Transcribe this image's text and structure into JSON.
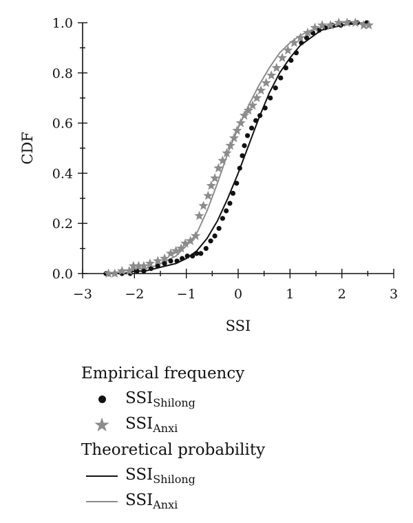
{
  "colors": {
    "shilong": "#111111",
    "anxi": "#8c8c8c",
    "axis": "#111111"
  },
  "chart_data": {
    "type": "line",
    "xlabel": "SSI",
    "ylabel": "CDF",
    "xlim": [
      -3,
      3
    ],
    "ylim": [
      0,
      1
    ],
    "xticks": [
      "−3",
      "−2",
      "−1",
      "0",
      "1",
      "2",
      "3"
    ],
    "yticks": [
      "0.0",
      "0.2",
      "0.4",
      "0.6",
      "0.8",
      "1.0"
    ],
    "grid": false,
    "legend_position": "bottom",
    "series": [
      {
        "name": "SSIShilong",
        "kind": "empirical",
        "marker": "dot",
        "color": "#111111",
        "points": [
          [
            -2.55,
            0.0
          ],
          [
            -2.38,
            0.0
          ],
          [
            -2.24,
            0.0
          ],
          [
            -2.08,
            0.0
          ],
          [
            -1.95,
            0.01
          ],
          [
            -1.82,
            0.01
          ],
          [
            -1.68,
            0.02
          ],
          [
            -1.55,
            0.03
          ],
          [
            -1.42,
            0.04
          ],
          [
            -1.3,
            0.05
          ],
          [
            -1.18,
            0.05
          ],
          [
            -1.08,
            0.06
          ],
          [
            -0.98,
            0.07
          ],
          [
            -0.88,
            0.07
          ],
          [
            -0.8,
            0.08
          ],
          [
            -0.72,
            0.08
          ],
          [
            -0.62,
            0.1
          ],
          [
            -0.53,
            0.13
          ],
          [
            -0.45,
            0.15
          ],
          [
            -0.37,
            0.18
          ],
          [
            -0.3,
            0.22
          ],
          [
            -0.23,
            0.25
          ],
          [
            -0.16,
            0.28
          ],
          [
            -0.1,
            0.32
          ],
          [
            -0.03,
            0.36
          ],
          [
            0.03,
            0.42
          ],
          [
            0.08,
            0.47
          ],
          [
            0.12,
            0.51
          ],
          [
            0.18,
            0.55
          ],
          [
            0.26,
            0.58
          ],
          [
            0.34,
            0.61
          ],
          [
            0.42,
            0.63
          ],
          [
            0.52,
            0.66
          ],
          [
            0.62,
            0.7
          ],
          [
            0.72,
            0.74
          ],
          [
            0.82,
            0.78
          ],
          [
            0.92,
            0.82
          ],
          [
            1.02,
            0.85
          ],
          [
            1.12,
            0.88
          ],
          [
            1.22,
            0.92
          ],
          [
            1.32,
            0.94
          ],
          [
            1.44,
            0.96
          ],
          [
            1.56,
            0.97
          ],
          [
            1.68,
            0.98
          ],
          [
            1.82,
            0.99
          ],
          [
            1.98,
            0.99
          ],
          [
            2.14,
            1.0
          ],
          [
            2.3,
            1.0
          ],
          [
            2.48,
            1.0
          ]
        ]
      },
      {
        "name": "SSIAnxi",
        "kind": "empirical",
        "marker": "star",
        "color": "#8c8c8c",
        "points": [
          [
            -2.5,
            0.0
          ],
          [
            -2.38,
            0.0
          ],
          [
            -2.24,
            0.01
          ],
          [
            -2.1,
            0.01
          ],
          [
            -2.02,
            0.03
          ],
          [
            -1.92,
            0.03
          ],
          [
            -1.82,
            0.03
          ],
          [
            -1.7,
            0.04
          ],
          [
            -1.55,
            0.05
          ],
          [
            -1.42,
            0.06
          ],
          [
            -1.3,
            0.08
          ],
          [
            -1.2,
            0.09
          ],
          [
            -1.1,
            0.1
          ],
          [
            -1.02,
            0.12
          ],
          [
            -0.92,
            0.13
          ],
          [
            -0.82,
            0.15
          ],
          [
            -0.75,
            0.23
          ],
          [
            -0.67,
            0.27
          ],
          [
            -0.58,
            0.31
          ],
          [
            -0.52,
            0.35
          ],
          [
            -0.45,
            0.38
          ],
          [
            -0.38,
            0.42
          ],
          [
            -0.3,
            0.45
          ],
          [
            -0.22,
            0.48
          ],
          [
            -0.15,
            0.51
          ],
          [
            -0.08,
            0.54
          ],
          [
            -0.02,
            0.57
          ],
          [
            0.05,
            0.6
          ],
          [
            0.12,
            0.63
          ],
          [
            0.2,
            0.65
          ],
          [
            0.28,
            0.67
          ],
          [
            0.36,
            0.7
          ],
          [
            0.44,
            0.73
          ],
          [
            0.54,
            0.76
          ],
          [
            0.64,
            0.79
          ],
          [
            0.74,
            0.82
          ],
          [
            0.85,
            0.86
          ],
          [
            0.96,
            0.89
          ],
          [
            1.08,
            0.92
          ],
          [
            1.2,
            0.94
          ],
          [
            1.34,
            0.96
          ],
          [
            1.48,
            0.98
          ],
          [
            1.62,
            0.99
          ],
          [
            1.78,
            0.99
          ],
          [
            1.94,
            1.0
          ],
          [
            2.1,
            1.0
          ],
          [
            2.26,
            1.0
          ],
          [
            2.42,
            0.99
          ],
          [
            2.52,
            0.99
          ]
        ]
      },
      {
        "name": "SSIShilong",
        "kind": "theoretical",
        "marker": "line",
        "color": "#111111",
        "points": [
          [
            -2.5,
            0.0
          ],
          [
            -2.2,
            0.0
          ],
          [
            -2.0,
            0.01
          ],
          [
            -1.8,
            0.01
          ],
          [
            -1.6,
            0.02
          ],
          [
            -1.4,
            0.03
          ],
          [
            -1.2,
            0.04
          ],
          [
            -1.0,
            0.06
          ],
          [
            -0.8,
            0.09
          ],
          [
            -0.6,
            0.14
          ],
          [
            -0.4,
            0.21
          ],
          [
            -0.2,
            0.3
          ],
          [
            0.0,
            0.4
          ],
          [
            0.2,
            0.51
          ],
          [
            0.4,
            0.62
          ],
          [
            0.6,
            0.72
          ],
          [
            0.8,
            0.8
          ],
          [
            1.0,
            0.86
          ],
          [
            1.2,
            0.91
          ],
          [
            1.4,
            0.94
          ],
          [
            1.6,
            0.97
          ],
          [
            1.8,
            0.98
          ],
          [
            2.0,
            0.99
          ],
          [
            2.2,
            0.995
          ],
          [
            2.5,
            1.0
          ]
        ]
      },
      {
        "name": "SSIAnxi",
        "kind": "theoretical",
        "marker": "line",
        "color": "#8c8c8c",
        "points": [
          [
            -2.5,
            0.0
          ],
          [
            -2.2,
            0.01
          ],
          [
            -2.0,
            0.02
          ],
          [
            -1.8,
            0.02
          ],
          [
            -1.6,
            0.03
          ],
          [
            -1.4,
            0.05
          ],
          [
            -1.2,
            0.07
          ],
          [
            -1.0,
            0.11
          ],
          [
            -0.8,
            0.16
          ],
          [
            -0.6,
            0.25
          ],
          [
            -0.4,
            0.36
          ],
          [
            -0.2,
            0.48
          ],
          [
            0.0,
            0.58
          ],
          [
            0.2,
            0.67
          ],
          [
            0.4,
            0.75
          ],
          [
            0.6,
            0.82
          ],
          [
            0.8,
            0.88
          ],
          [
            1.0,
            0.92
          ],
          [
            1.2,
            0.95
          ],
          [
            1.4,
            0.97
          ],
          [
            1.6,
            0.98
          ],
          [
            1.8,
            0.99
          ],
          [
            2.0,
            1.0
          ],
          [
            2.5,
            1.0
          ]
        ]
      }
    ]
  },
  "legend": {
    "empirical_title": "Empirical frequency",
    "theoretical_title": "Theoretical probability",
    "shilong_base": "SSI",
    "shilong_sub": "Shilong",
    "anxi_base": "SSI",
    "anxi_sub": "Anxi"
  }
}
